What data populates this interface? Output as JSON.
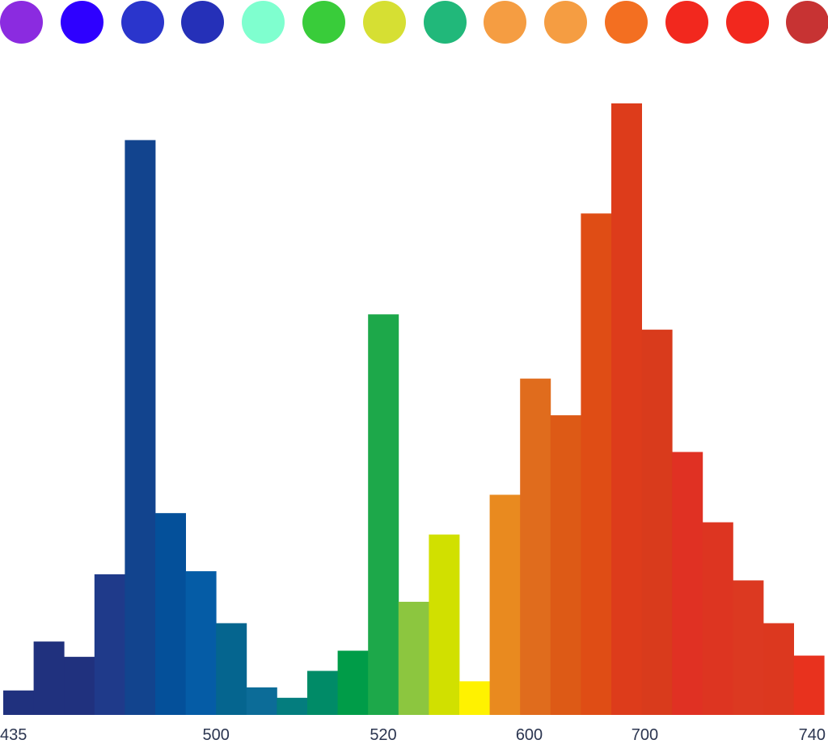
{
  "swatches": [
    {
      "color": "#8b2be0"
    },
    {
      "color": "#2e00ff"
    },
    {
      "color": "#2a35cc"
    },
    {
      "color": "#2530b8"
    },
    {
      "color": "#7fffcf"
    },
    {
      "color": "#39cc3a"
    },
    {
      "color": "#d6df33"
    },
    {
      "color": "#21b87a"
    },
    {
      "color": "#f59d42"
    },
    {
      "color": "#f59d42"
    },
    {
      "color": "#f36f21"
    },
    {
      "color": "#f2281e"
    },
    {
      "color": "#f2281e"
    },
    {
      "color": "#c73333"
    }
  ],
  "chart_data": {
    "type": "bar",
    "title": "",
    "xlabel": "",
    "ylabel": "",
    "ylim": [
      0,
      100
    ],
    "tick_labels": [
      "435",
      "500",
      "520",
      "600",
      "700",
      "740"
    ],
    "tick_positions": [
      0,
      7,
      12.5,
      17.3,
      21.1,
      26.6
    ],
    "values": [
      4,
      12,
      9.5,
      23,
      94,
      33,
      23.5,
      15,
      4.5,
      2.8,
      7.2,
      10.5,
      65.5,
      18.5,
      29.5,
      5.5,
      36,
      55,
      49,
      82,
      100,
      63,
      43,
      31.5,
      22,
      15,
      9.7
    ],
    "colors": [
      "#20317e",
      "#20317e",
      "#20317e",
      "#1f3a8a",
      "#12448e",
      "#04509a",
      "#055ca6",
      "#05658f",
      "#0c6c98",
      "#047d7e",
      "#008b67",
      "#009c48",
      "#1da84a",
      "#8cc63f",
      "#d1e000",
      "#fff200",
      "#e98a1f",
      "#e06c1d",
      "#dd5a16",
      "#df4d15",
      "#dd3c1b",
      "#d93b1c",
      "#e03123",
      "#dd3521",
      "#dc3921",
      "#dc381f",
      "#e8321e"
    ]
  }
}
